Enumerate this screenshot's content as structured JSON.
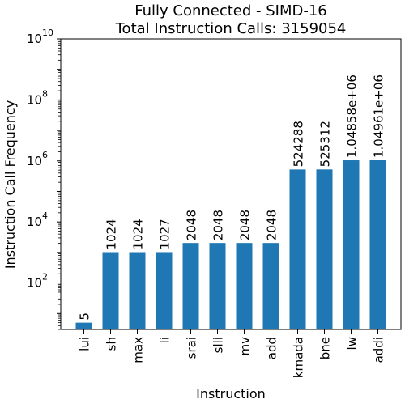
{
  "chart_data": {
    "type": "bar",
    "title": "Fully Connected - SIMD-16",
    "subtitle": "Total Instruction Calls: 3159054",
    "xlabel": "Instruction",
    "ylabel": "Instruction Call Frequency",
    "yscale": "log",
    "ylim": [
      3,
      10000000000
    ],
    "yticks": [
      {
        "value": 100,
        "base": "10",
        "exp": "2"
      },
      {
        "value": 10000,
        "base": "10",
        "exp": "4"
      },
      {
        "value": 1000000,
        "base": "10",
        "exp": "6"
      },
      {
        "value": 100000000,
        "base": "10",
        "exp": "8"
      },
      {
        "value": 10000000000,
        "base": "10",
        "exp": "10"
      }
    ],
    "bar_color": "#1f77b4",
    "categories": [
      "lui",
      "sh",
      "max",
      "li",
      "srai",
      "slli",
      "mv",
      "add",
      "kmada",
      "bne",
      "lw",
      "addi"
    ],
    "values": [
      5,
      1024,
      1024,
      1027,
      2048,
      2048,
      2048,
      2048,
      524288,
      525312,
      1048580,
      1049610
    ],
    "data_labels": [
      "5",
      "1024",
      "1024",
      "1027",
      "2048",
      "2048",
      "2048",
      "2048",
      "524288",
      "525312",
      "1.04858e+06",
      "1.04961e+06"
    ]
  }
}
